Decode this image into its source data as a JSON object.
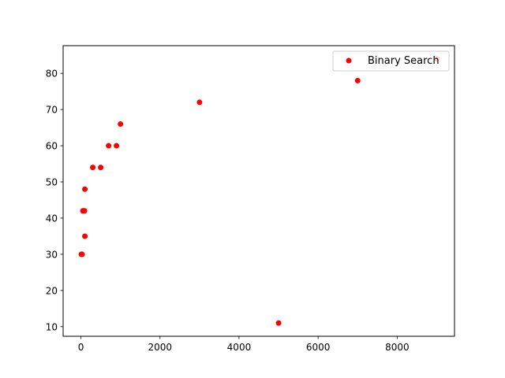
{
  "chart_data": {
    "type": "scatter",
    "title": "",
    "xlabel": "",
    "ylabel": "",
    "xlim": [
      -450,
      9450
    ],
    "ylim": [
      7.35,
      87.65
    ],
    "xticks": [
      0,
      2000,
      4000,
      6000,
      8000
    ],
    "yticks": [
      10,
      20,
      30,
      40,
      50,
      60,
      70,
      80
    ],
    "grid": false,
    "legend": {
      "position": "top-right"
    },
    "series": [
      {
        "name": "Binary Search",
        "color": "#ff0000",
        "points": [
          {
            "x": 10,
            "y": 30
          },
          {
            "x": 30,
            "y": 30
          },
          {
            "x": 50,
            "y": 42
          },
          {
            "x": 70,
            "y": 42
          },
          {
            "x": 90,
            "y": 42
          },
          {
            "x": 100,
            "y": 35
          },
          {
            "x": 100,
            "y": 48
          },
          {
            "x": 300,
            "y": 54
          },
          {
            "x": 500,
            "y": 54
          },
          {
            "x": 700,
            "y": 60
          },
          {
            "x": 900,
            "y": 60
          },
          {
            "x": 1000,
            "y": 66
          },
          {
            "x": 3000,
            "y": 72
          },
          {
            "x": 5000,
            "y": 11
          },
          {
            "x": 7000,
            "y": 78
          },
          {
            "x": 9000,
            "y": 84
          }
        ]
      }
    ]
  }
}
